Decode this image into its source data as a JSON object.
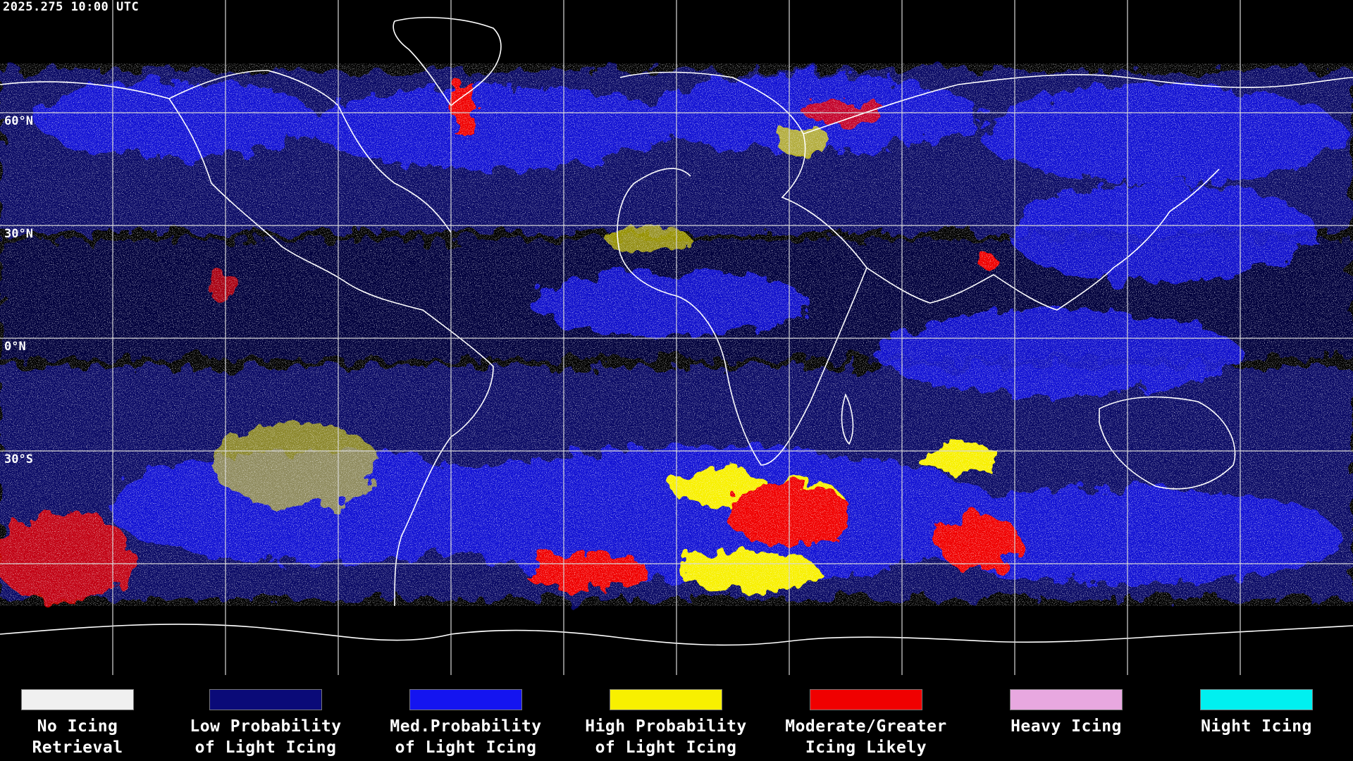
{
  "timestamp": "2025.275 10:00 UTC",
  "latitude_labels": [
    "60°N",
    "30°N",
    "0°N",
    "30°S"
  ],
  "legend": [
    {
      "label": "No Icing\nRetrieval",
      "color": "#f0f0f0"
    },
    {
      "label": "Low Probability\nof Light Icing",
      "color": "#0a0a78"
    },
    {
      "label": "Med.Probability\nof Light Icing",
      "color": "#1414f0"
    },
    {
      "label": "High Probability\nof Light Icing",
      "color": "#f8f000"
    },
    {
      "label": "Moderate/Greater\nIcing Likely",
      "color": "#f00000"
    },
    {
      "label": "Heavy Icing",
      "color": "#e8a8e0"
    },
    {
      "label": "Night Icing",
      "color": "#00f0f0"
    }
  ]
}
